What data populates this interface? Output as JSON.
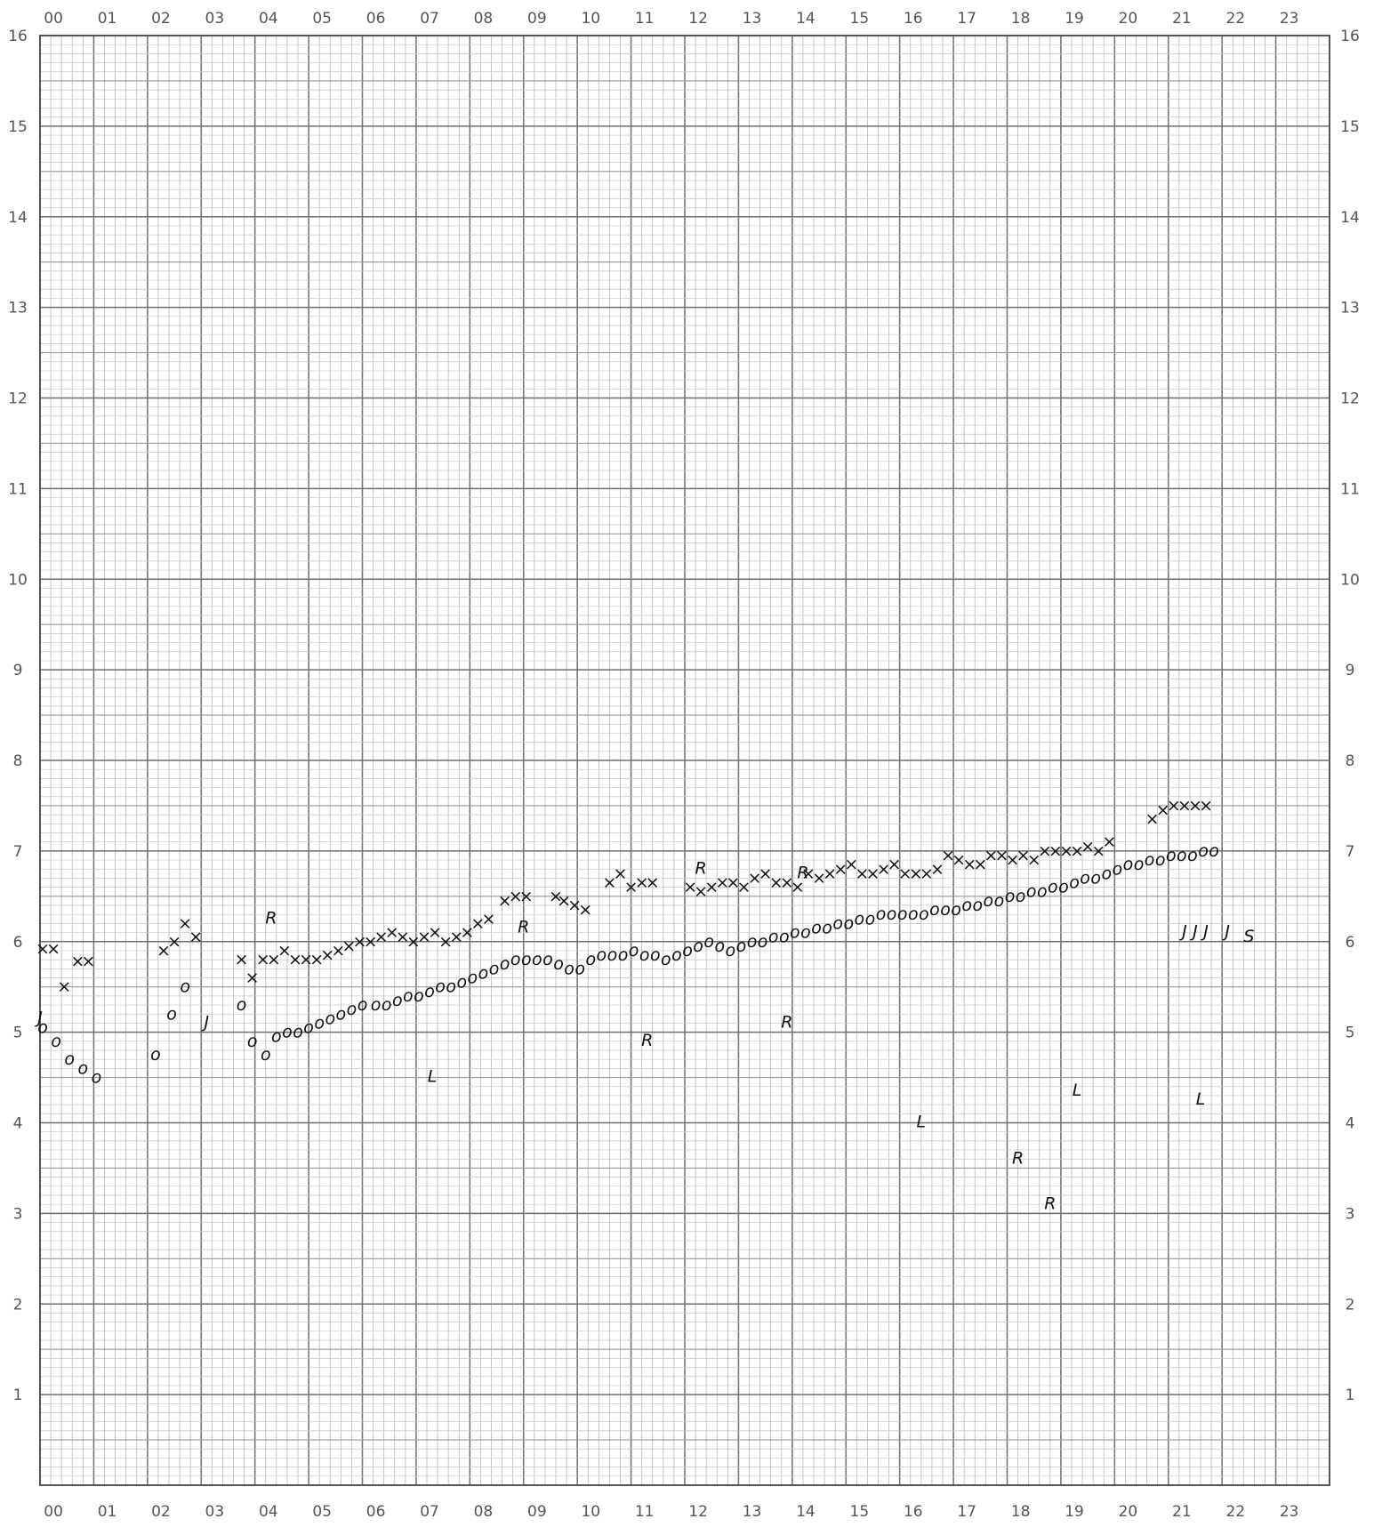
{
  "chart_data": {
    "type": "scatter",
    "title": "",
    "xlabel": "",
    "ylabel": "",
    "x_tick_labels": [
      "00",
      "01",
      "02",
      "03",
      "04",
      "05",
      "06",
      "07",
      "08",
      "09",
      "10",
      "11",
      "12",
      "13",
      "14",
      "15",
      "16",
      "17",
      "18",
      "19",
      "20",
      "21",
      "22",
      "23"
    ],
    "y_tick_labels": [
      "1",
      "2",
      "3",
      "4",
      "5",
      "6",
      "7",
      "8",
      "9",
      "10",
      "11",
      "12",
      "13",
      "14",
      "15",
      "16"
    ],
    "xlim": [
      0,
      24
    ],
    "ylim": [
      0,
      16
    ],
    "grid": true,
    "series": [
      {
        "marker": "x",
        "points": [
          [
            0.05,
            5.92
          ],
          [
            0.25,
            5.92
          ],
          [
            0.45,
            5.5
          ],
          [
            0.7,
            5.78
          ],
          [
            0.9,
            5.78
          ],
          [
            2.3,
            5.9
          ],
          [
            2.5,
            6.0
          ],
          [
            2.7,
            6.2
          ],
          [
            2.9,
            6.05
          ],
          [
            3.75,
            5.8
          ],
          [
            3.95,
            5.6
          ],
          [
            4.15,
            5.8
          ],
          [
            4.35,
            5.8
          ],
          [
            4.55,
            5.9
          ],
          [
            4.75,
            5.8
          ],
          [
            4.95,
            5.8
          ],
          [
            5.15,
            5.8
          ],
          [
            5.35,
            5.85
          ],
          [
            5.55,
            5.9
          ],
          [
            5.75,
            5.95
          ],
          [
            5.95,
            6.0
          ],
          [
            6.15,
            6.0
          ],
          [
            6.35,
            6.05
          ],
          [
            6.55,
            6.1
          ],
          [
            6.75,
            6.05
          ],
          [
            6.95,
            6.0
          ],
          [
            7.15,
            6.05
          ],
          [
            7.35,
            6.1
          ],
          [
            7.55,
            6.0
          ],
          [
            7.75,
            6.05
          ],
          [
            7.95,
            6.1
          ],
          [
            8.15,
            6.2
          ],
          [
            8.35,
            6.25
          ],
          [
            8.65,
            6.45
          ],
          [
            8.85,
            6.5
          ],
          [
            9.05,
            6.5
          ],
          [
            9.6,
            6.5
          ],
          [
            9.75,
            6.45
          ],
          [
            9.95,
            6.4
          ],
          [
            10.15,
            6.35
          ],
          [
            10.6,
            6.65
          ],
          [
            10.8,
            6.75
          ],
          [
            11.0,
            6.6
          ],
          [
            11.2,
            6.65
          ],
          [
            11.4,
            6.65
          ],
          [
            12.1,
            6.6
          ],
          [
            12.3,
            6.55
          ],
          [
            12.5,
            6.6
          ],
          [
            12.7,
            6.65
          ],
          [
            12.9,
            6.65
          ],
          [
            13.1,
            6.6
          ],
          [
            13.3,
            6.7
          ],
          [
            13.5,
            6.75
          ],
          [
            13.7,
            6.65
          ],
          [
            13.9,
            6.65
          ],
          [
            14.1,
            6.6
          ],
          [
            14.3,
            6.75
          ],
          [
            14.5,
            6.7
          ],
          [
            14.7,
            6.75
          ],
          [
            14.9,
            6.8
          ],
          [
            15.1,
            6.85
          ],
          [
            15.3,
            6.75
          ],
          [
            15.5,
            6.75
          ],
          [
            15.7,
            6.8
          ],
          [
            15.9,
            6.85
          ],
          [
            16.1,
            6.75
          ],
          [
            16.3,
            6.75
          ],
          [
            16.5,
            6.75
          ],
          [
            16.7,
            6.8
          ],
          [
            16.9,
            6.95
          ],
          [
            17.1,
            6.9
          ],
          [
            17.3,
            6.85
          ],
          [
            17.5,
            6.85
          ],
          [
            17.7,
            6.95
          ],
          [
            17.9,
            6.95
          ],
          [
            18.1,
            6.9
          ],
          [
            18.3,
            6.95
          ],
          [
            18.5,
            6.9
          ],
          [
            18.7,
            7.0
          ],
          [
            18.9,
            7.0
          ],
          [
            19.1,
            7.0
          ],
          [
            19.3,
            7.0
          ],
          [
            19.5,
            7.05
          ],
          [
            19.7,
            7.0
          ],
          [
            19.9,
            7.1
          ],
          [
            20.7,
            7.35
          ],
          [
            20.9,
            7.45
          ],
          [
            21.1,
            7.5
          ],
          [
            21.3,
            7.5
          ],
          [
            21.5,
            7.5
          ],
          [
            21.7,
            7.5
          ]
        ]
      },
      {
        "marker": "o",
        "points": [
          [
            0.05,
            5.05
          ],
          [
            0.3,
            4.9
          ],
          [
            0.55,
            4.7
          ],
          [
            0.8,
            4.6
          ],
          [
            1.05,
            4.5
          ],
          [
            2.15,
            4.75
          ],
          [
            2.45,
            5.2
          ],
          [
            2.7,
            5.5
          ],
          [
            3.75,
            5.3
          ],
          [
            3.95,
            4.9
          ],
          [
            4.2,
            4.75
          ],
          [
            4.4,
            4.95
          ],
          [
            4.6,
            5.0
          ],
          [
            4.8,
            5.0
          ],
          [
            5.0,
            5.05
          ],
          [
            5.2,
            5.1
          ],
          [
            5.4,
            5.15
          ],
          [
            5.6,
            5.2
          ],
          [
            5.8,
            5.25
          ],
          [
            6.0,
            5.3
          ],
          [
            6.25,
            5.3
          ],
          [
            6.45,
            5.3
          ],
          [
            6.65,
            5.35
          ],
          [
            6.85,
            5.4
          ],
          [
            7.05,
            5.4
          ],
          [
            7.25,
            5.45
          ],
          [
            7.45,
            5.5
          ],
          [
            7.65,
            5.5
          ],
          [
            7.85,
            5.55
          ],
          [
            8.05,
            5.6
          ],
          [
            8.25,
            5.65
          ],
          [
            8.45,
            5.7
          ],
          [
            8.65,
            5.75
          ],
          [
            8.85,
            5.8
          ],
          [
            9.05,
            5.8
          ],
          [
            9.25,
            5.8
          ],
          [
            9.45,
            5.8
          ],
          [
            9.65,
            5.75
          ],
          [
            9.85,
            5.7
          ],
          [
            10.05,
            5.7
          ],
          [
            10.25,
            5.8
          ],
          [
            10.45,
            5.85
          ],
          [
            10.65,
            5.85
          ],
          [
            10.85,
            5.85
          ],
          [
            11.05,
            5.9
          ],
          [
            11.25,
            5.85
          ],
          [
            11.45,
            5.85
          ],
          [
            11.65,
            5.8
          ],
          [
            11.85,
            5.85
          ],
          [
            12.05,
            5.9
          ],
          [
            12.25,
            5.95
          ],
          [
            12.45,
            6.0
          ],
          [
            12.65,
            5.95
          ],
          [
            12.85,
            5.9
          ],
          [
            13.05,
            5.95
          ],
          [
            13.25,
            6.0
          ],
          [
            13.45,
            6.0
          ],
          [
            13.65,
            6.05
          ],
          [
            13.85,
            6.05
          ],
          [
            14.05,
            6.1
          ],
          [
            14.25,
            6.1
          ],
          [
            14.45,
            6.15
          ],
          [
            14.65,
            6.15
          ],
          [
            14.85,
            6.2
          ],
          [
            15.05,
            6.2
          ],
          [
            15.25,
            6.25
          ],
          [
            15.45,
            6.25
          ],
          [
            15.65,
            6.3
          ],
          [
            15.85,
            6.3
          ],
          [
            16.05,
            6.3
          ],
          [
            16.25,
            6.3
          ],
          [
            16.45,
            6.3
          ],
          [
            16.65,
            6.35
          ],
          [
            16.85,
            6.35
          ],
          [
            17.05,
            6.35
          ],
          [
            17.25,
            6.4
          ],
          [
            17.45,
            6.4
          ],
          [
            17.65,
            6.45
          ],
          [
            17.85,
            6.45
          ],
          [
            18.05,
            6.5
          ],
          [
            18.25,
            6.5
          ],
          [
            18.45,
            6.55
          ],
          [
            18.65,
            6.55
          ],
          [
            18.85,
            6.6
          ],
          [
            19.05,
            6.6
          ],
          [
            19.25,
            6.65
          ],
          [
            19.45,
            6.7
          ],
          [
            19.65,
            6.7
          ],
          [
            19.85,
            6.75
          ],
          [
            20.05,
            6.8
          ],
          [
            20.25,
            6.85
          ],
          [
            20.45,
            6.85
          ],
          [
            20.65,
            6.9
          ],
          [
            20.85,
            6.9
          ],
          [
            21.05,
            6.95
          ],
          [
            21.25,
            6.95
          ],
          [
            21.45,
            6.95
          ],
          [
            21.65,
            7.0
          ],
          [
            21.85,
            7.0
          ]
        ]
      }
    ],
    "annotations": [
      "J",
      "R",
      "R",
      "R",
      "R",
      "R",
      "R",
      "R",
      "R",
      "L",
      "L",
      "L",
      "L",
      "J",
      "J",
      "J",
      "J",
      "J",
      "S"
    ]
  }
}
